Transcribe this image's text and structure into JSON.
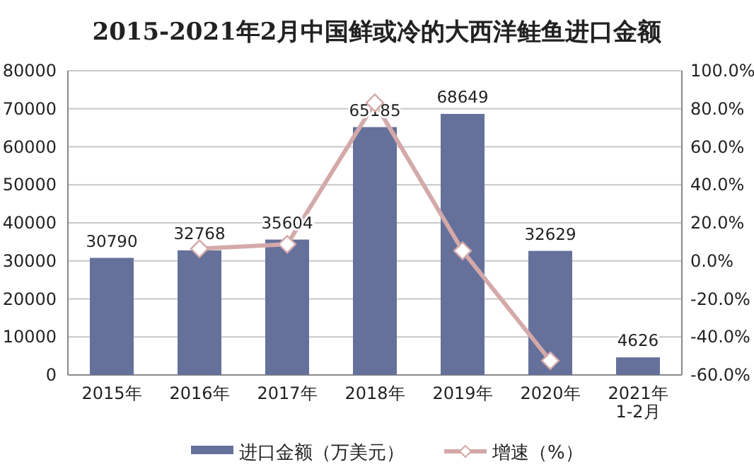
{
  "chart_data": {
    "type": "bar",
    "title": "2015-2021年2月中国鲜或冷的大西洋鲑鱼进口金额",
    "categories": [
      "2015年",
      "2016年",
      "2017年",
      "2018年",
      "2019年",
      "2020年",
      "2021年\n1-2月"
    ],
    "series": [
      {
        "name": "进口金额（万美元）",
        "color": "#65719b",
        "values": [
          30790,
          32768,
          35604,
          65185,
          68649,
          32629,
          4626
        ],
        "value_labels": [
          "30790",
          "32768",
          "35604",
          "65185",
          "68649",
          "32629",
          "4626"
        ]
      },
      {
        "name": "增速（%）",
        "type": "line",
        "axis": "y2",
        "color": "#d4a9a9",
        "marker": "diamond",
        "values": [
          null,
          6.4,
          8.7,
          83.1,
          5.3,
          -52.5,
          null
        ]
      }
    ],
    "ylim": [
      0,
      80000
    ],
    "yticks": [
      0,
      10000,
      20000,
      30000,
      40000,
      50000,
      60000,
      70000,
      80000
    ],
    "y2lim": [
      -60,
      100
    ],
    "y2ticks": [
      {
        "value": -60,
        "label": "-60.0%"
      },
      {
        "value": -40,
        "label": "-40.0%"
      },
      {
        "value": -20,
        "label": "-20.0%"
      },
      {
        "value": 0,
        "label": "0.0%"
      },
      {
        "value": 20,
        "label": "20.0%"
      },
      {
        "value": 40,
        "label": "40.0%"
      },
      {
        "value": 60,
        "label": "60.0%"
      },
      {
        "value": 80,
        "label": "80.0%"
      },
      {
        "value": 100,
        "label": "100.0%"
      }
    ],
    "grid": "y",
    "legend": "bottom"
  }
}
